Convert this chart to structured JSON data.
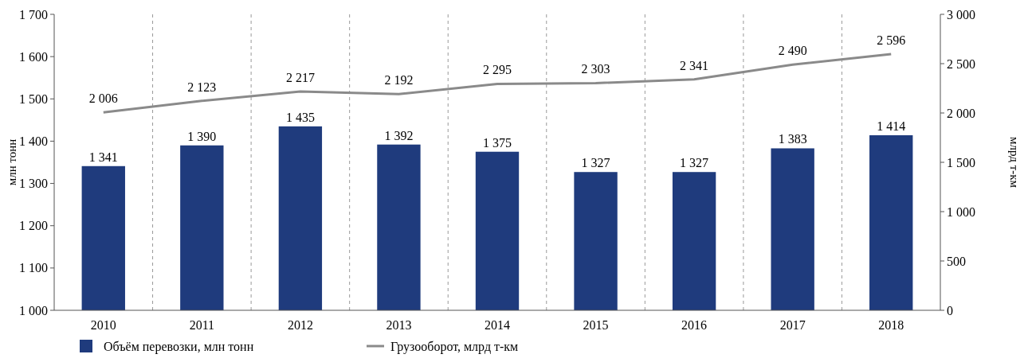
{
  "chart_data": {
    "type": "bar",
    "categories": [
      "2010",
      "2011",
      "2012",
      "2013",
      "2014",
      "2015",
      "2016",
      "2017",
      "2018"
    ],
    "series": [
      {
        "name": "Объём перевозки, млн тонн",
        "color": "#1f3b7d",
        "values": [
          1341,
          1390,
          1435,
          1392,
          1375,
          1327,
          1327,
          1383,
          1414
        ]
      },
      {
        "name": "Грузооборот, млрд т-км",
        "type": "line",
        "axis": "y2",
        "color": "#8a8a8a",
        "values": [
          2006,
          2123,
          2217,
          2192,
          2295,
          2303,
          2341,
          2490,
          2596
        ]
      }
    ],
    "ylabel": "млн тонн",
    "y2label": "млрд т-км",
    "ylim": [
      1000,
      1700
    ],
    "yticks": [
      {
        "value": 1000,
        "label": "1 000"
      },
      {
        "value": 1100,
        "label": "1 100"
      },
      {
        "value": 1200,
        "label": "1 200"
      },
      {
        "value": 1300,
        "label": "1 300"
      },
      {
        "value": 1400,
        "label": "1 400"
      },
      {
        "value": 1500,
        "label": "1 500"
      },
      {
        "value": 1600,
        "label": "1 600"
      },
      {
        "value": 1700,
        "label": "1 700"
      }
    ],
    "y2lim": [
      0,
      3000
    ],
    "y2ticks": [
      0,
      500,
      {
        "value": 1000,
        "label": "1 000"
      },
      {
        "value": 1500,
        "label": "1 500"
      },
      {
        "value": 2000,
        "label": "2 000"
      },
      {
        "value": 2500,
        "label": "2 500"
      },
      {
        "value": 3000,
        "label": "3 000"
      }
    ],
    "data_labels": true,
    "grid": "x",
    "legend": "bottom left",
    "marker": "none",
    "line_style": "solid"
  }
}
